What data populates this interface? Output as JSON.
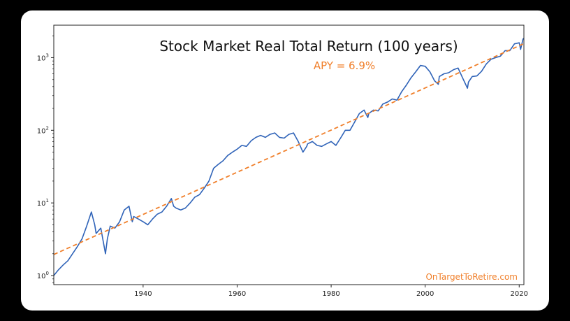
{
  "colors": {
    "frame": "#000000",
    "card": "#ffffff",
    "series": "#2f63b8",
    "trend": "#f07f2a"
  },
  "chart_data": {
    "type": "line",
    "title": "Stock Market Real Total Return (100 years)",
    "annotation": "APY = 6.9%",
    "watermark": "OnTargetToRetire.com",
    "xlim": [
      1921,
      2021
    ],
    "ylim": [
      0.75,
      2800
    ],
    "yscale": "log",
    "grid": false,
    "x_ticks": [
      1940,
      1960,
      1980,
      2000,
      2020
    ],
    "y_ticks": [
      {
        "value": 1,
        "base": "10",
        "exp": "0"
      },
      {
        "value": 10,
        "base": "10",
        "exp": "1"
      },
      {
        "value": 100,
        "base": "10",
        "exp": "2"
      },
      {
        "value": 1000,
        "base": "10",
        "exp": "3"
      }
    ],
    "series": [
      {
        "kind": "actual",
        "x": [
          1921,
          1922,
          1923,
          1924,
          1925,
          1926,
          1927,
          1928,
          1929,
          1929.7,
          1930,
          1931,
          1932,
          1932.4,
          1933,
          1934,
          1935,
          1936,
          1937,
          1937.7,
          1938,
          1939,
          1940,
          1941,
          1942,
          1943,
          1944,
          1945,
          1946,
          1946.5,
          1947,
          1948,
          1949,
          1950,
          1951,
          1952,
          1953,
          1954,
          1955,
          1956,
          1957,
          1958,
          1959,
          1960,
          1961,
          1962,
          1963,
          1964,
          1965,
          1966,
          1967,
          1968,
          1969,
          1970,
          1971,
          1972,
          1973,
          1974,
          1974.8,
          1975,
          1976,
          1977,
          1978,
          1979,
          1980,
          1981,
          1982,
          1983,
          1984,
          1985,
          1986,
          1987,
          1987.8,
          1988,
          1989,
          1990,
          1991,
          1992,
          1993,
          1994,
          1995,
          1996,
          1997,
          1998,
          1999,
          2000,
          2001,
          2002,
          2002.8,
          2003,
          2004,
          2005,
          2006,
          2007,
          2008,
          2009,
          2009.2,
          2010,
          2011,
          2012,
          2013,
          2014,
          2015,
          2016,
          2017,
          2018,
          2019,
          2020,
          2020.3,
          2020.8,
          2021
        ],
        "y": [
          1.0,
          1.2,
          1.4,
          1.6,
          2.0,
          2.5,
          3.2,
          4.8,
          7.5,
          5.0,
          3.8,
          4.5,
          2.0,
          3.2,
          4.8,
          4.5,
          5.5,
          8.0,
          9.0,
          5.5,
          6.5,
          6.0,
          5.5,
          5.0,
          6.0,
          7.0,
          7.5,
          9.0,
          11.5,
          9.0,
          8.5,
          8.0,
          8.5,
          10.0,
          12.0,
          13.0,
          16.0,
          20.0,
          30.0,
          34.0,
          38.0,
          45.0,
          50.0,
          55.0,
          62.0,
          60.0,
          72.0,
          80.0,
          85.0,
          80.0,
          88.0,
          92.0,
          80.0,
          78.0,
          88.0,
          92.0,
          70.0,
          50.0,
          60.0,
          65.0,
          70.0,
          62.0,
          60.0,
          65.0,
          70.0,
          62.0,
          78.0,
          100.0,
          100.0,
          130.0,
          170.0,
          190.0,
          150.0,
          170.0,
          190.0,
          185.0,
          230.0,
          245.0,
          270.0,
          260.0,
          340.0,
          420.0,
          530.0,
          640.0,
          780.0,
          760.0,
          640.0,
          480.0,
          430.0,
          550.0,
          600.0,
          620.0,
          680.0,
          720.0,
          520.0,
          380.0,
          460.0,
          550.0,
          560.0,
          650.0,
          820.0,
          950.0,
          1000.0,
          1050.0,
          1250.0,
          1250.0,
          1550.0,
          1600.0,
          1300.0,
          1800.0,
          1850.0
        ]
      },
      {
        "kind": "trend",
        "x": [
          1921,
          2021
        ],
        "y": [
          1.95,
          1560
        ]
      }
    ]
  }
}
